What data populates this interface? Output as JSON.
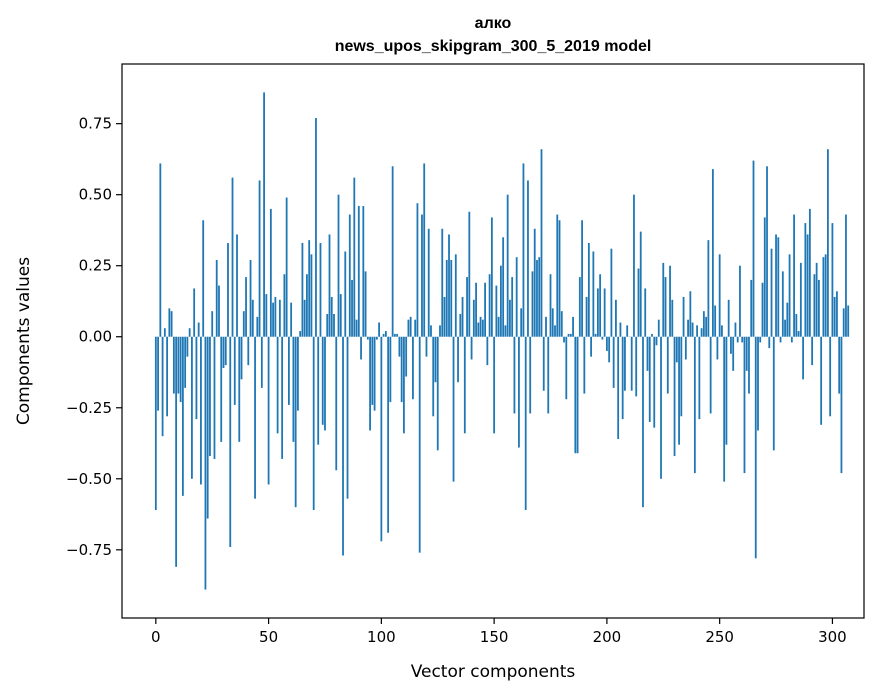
{
  "chart_data": {
    "type": "bar",
    "title": "алко",
    "subtitle": "news_upos_skipgram_300_5_2019 model",
    "xlabel": "Vector components",
    "ylabel": "Components values",
    "xlim": [
      -15,
      314
    ],
    "ylim": [
      -0.99,
      0.96
    ],
    "xticks": [
      0,
      50,
      100,
      150,
      200,
      250,
      300
    ],
    "yticks": [
      -0.75,
      -0.5,
      -0.25,
      0.0,
      0.25,
      0.5,
      0.75
    ],
    "ytick_labels": [
      "−0.75",
      "−0.50",
      "−0.25",
      "0.00",
      "0.25",
      "0.50",
      "0.75"
    ],
    "bar_color": "#1f77b4",
    "values": [
      -0.61,
      -0.26,
      0.61,
      -0.35,
      0.03,
      -0.28,
      0.1,
      0.09,
      -0.2,
      -0.81,
      -0.2,
      -0.23,
      -0.56,
      -0.18,
      -0.07,
      0.03,
      -0.5,
      0.17,
      -0.29,
      0.05,
      -0.52,
      0.41,
      -0.89,
      -0.64,
      -0.42,
      0.09,
      -0.43,
      0.27,
      0.18,
      -0.37,
      -0.11,
      -0.1,
      0.33,
      -0.74,
      0.56,
      -0.24,
      0.36,
      -0.37,
      -0.15,
      0.09,
      0.21,
      -0.1,
      0.27,
      0.13,
      -0.57,
      0.07,
      0.55,
      -0.18,
      0.86,
      0.15,
      -0.52,
      0.45,
      0.12,
      0.14,
      -0.34,
      0.13,
      -0.43,
      0.22,
      0.49,
      -0.24,
      0.12,
      -0.37,
      -0.6,
      -0.26,
      0.02,
      0.33,
      0.13,
      0.22,
      0.34,
      0.29,
      -0.61,
      0.77,
      -0.38,
      0.33,
      -0.31,
      -0.33,
      0.08,
      0.36,
      0.14,
      0.08,
      -0.47,
      0.5,
      0.15,
      -0.77,
      0.3,
      -0.57,
      0.43,
      0.2,
      0.56,
      0.06,
      0.46,
      -0.08,
      0.46,
      0.23,
      -0.01,
      -0.33,
      -0.24,
      -0.26,
      -0.01,
      0.05,
      -0.72,
      0.01,
      0.02,
      -0.69,
      -0.23,
      0.6,
      0.01,
      0.01,
      -0.07,
      -0.23,
      -0.34,
      -0.14,
      0.06,
      0.07,
      -0.22,
      0.06,
      0.47,
      -0.76,
      0.43,
      0.61,
      -0.07,
      0.38,
      0.04,
      -0.28,
      -0.16,
      -0.4,
      0.04,
      0.38,
      0.14,
      0.27,
      0.36,
      0.27,
      -0.51,
      0.29,
      -0.16,
      0.08,
      0.14,
      -0.34,
      0.21,
      0.44,
      -0.08,
      0.13,
      0.19,
      0.05,
      0.07,
      0.06,
      0.19,
      -0.1,
      0.22,
      0.42,
      -0.34,
      0.18,
      0.07,
      0.25,
      0.35,
      0.04,
      0.5,
      0.13,
      0.21,
      -0.27,
      0.28,
      -0.39,
      0.1,
      0.61,
      -0.61,
      0.55,
      -0.27,
      0.23,
      0.38,
      0.27,
      0.28,
      0.66,
      -0.19,
      0.07,
      -0.27,
      0.22,
      0.1,
      0.04,
      0.43,
      0.41,
      0.09,
      -0.02,
      -0.22,
      0.01,
      0.01,
      0.07,
      -0.41,
      -0.41,
      0.21,
      0.41,
      -0.2,
      0.14,
      0.33,
      -0.07,
      0.3,
      0.01,
      0.17,
      0.22,
      -0.01,
      0.17,
      -0.05,
      -0.09,
      0.31,
      -0.18,
      0.13,
      -0.36,
      0.05,
      -0.29,
      -0.19,
      0.04,
      0.0,
      -0.19,
      0.5,
      -0.21,
      0.24,
      0.37,
      -0.6,
      0.17,
      -0.12,
      -0.3,
      0.01,
      -0.32,
      -0.03,
      0.06,
      -0.5,
      0.26,
      0.21,
      -0.2,
      0.25,
      0.13,
      -0.42,
      -0.09,
      -0.38,
      -0.28,
      0.14,
      -0.08,
      0.06,
      0.16,
      0.05,
      -0.48,
      0.04,
      -0.29,
      0.03,
      0.09,
      0.07,
      0.34,
      -0.27,
      0.59,
      0.11,
      -0.08,
      0.29,
      0.04,
      -0.51,
      -0.38,
      0.13,
      -0.06,
      -0.12,
      0.05,
      -0.02,
      0.25,
      -0.02,
      -0.48,
      -0.12,
      -0.2,
      0.2,
      0.62,
      -0.78,
      -0.33,
      -0.02,
      0.19,
      0.42,
      0.6,
      -0.04,
      0.31,
      -0.4,
      0.36,
      0.35,
      -0.02,
      0.23,
      0.06,
      0.12,
      0.29,
      -0.02,
      0.43,
      0.08,
      0.02,
      0.26,
      -0.15,
      0.4,
      0.36,
      0.45,
      -0.1,
      0.22,
      0.26,
      0.2,
      -0.31,
      0.28,
      0.29,
      0.66,
      -0.28,
      0.4,
      0.14,
      0.16,
      -0.2,
      -0.48,
      0.1,
      0.43,
      0.11
    ]
  }
}
